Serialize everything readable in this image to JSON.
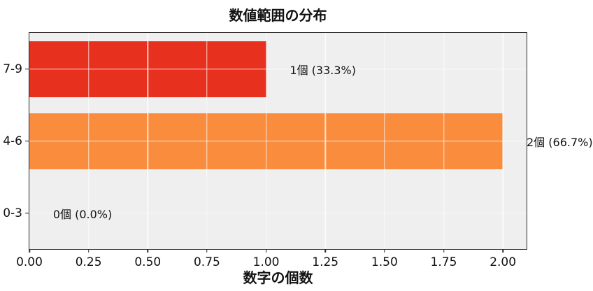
{
  "chart_data": {
    "type": "bar",
    "orientation": "horizontal",
    "title": "数値範囲の分布",
    "xlabel": "数字の個数",
    "ylabel": "",
    "categories": [
      "7-9",
      "4-6",
      "0-3"
    ],
    "values": [
      1,
      2,
      0
    ],
    "bar_labels": [
      "1個 (33.3%)",
      "2個 (66.7%)",
      "0個 (0.0%)"
    ],
    "bar_colors": [
      "#e7301e",
      "#fa8c3e",
      null
    ],
    "xlim": [
      0,
      2.1
    ],
    "xticks": [
      0,
      0.25,
      0.5,
      0.75,
      1,
      1.25,
      1.5,
      1.75,
      2
    ],
    "xtick_labels": [
      "0.00",
      "0.25",
      "0.50",
      "0.75",
      "1.00",
      "1.25",
      "1.50",
      "1.75",
      "2.00"
    ],
    "bar_label_offset": 0.1,
    "grid": true,
    "grid_color": "rgba(255,255,255,0.75)",
    "plot_background": "#efefef",
    "figure_background": "#ffffff",
    "legend": false
  }
}
